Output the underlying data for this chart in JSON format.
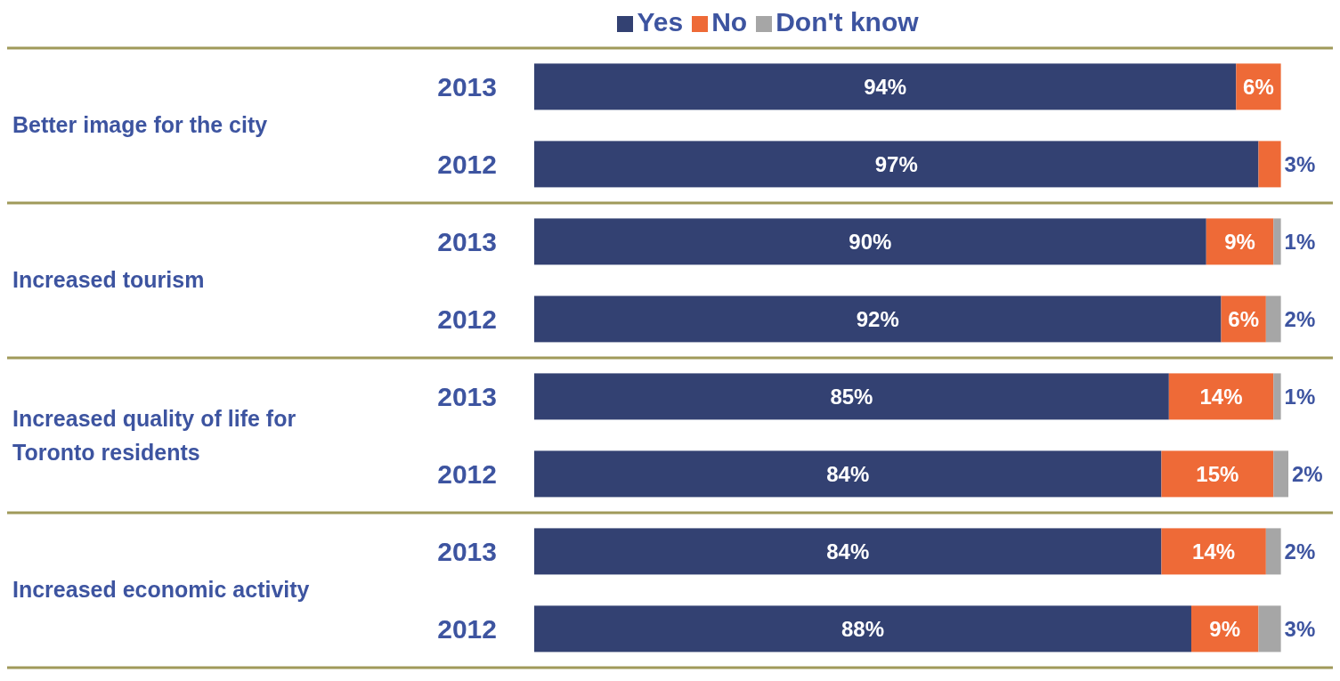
{
  "chart_data": {
    "type": "bar",
    "orientation": "horizontal",
    "stacked": true,
    "categories": [
      "2013",
      "2012",
      "2013",
      "2012",
      "2013",
      "2012",
      "2013",
      "2012"
    ],
    "annotations": [
      "Better image for the city",
      "Increased tourism",
      "Increased quality of life for Toronto residents",
      "Increased economic activity"
    ],
    "series": [
      {
        "name": "Yes",
        "color": "#334172",
        "values": [
          94,
          97,
          90,
          92,
          85,
          84,
          84,
          88
        ],
        "value_labels": [
          "94%",
          "97%",
          "90%",
          "92%",
          "85%",
          "84%",
          "84%",
          "88%"
        ]
      },
      {
        "name": "No",
        "color": "#ee6a37",
        "values": [
          6,
          3,
          9,
          6,
          14,
          15,
          14,
          9
        ],
        "value_labels": [
          "6%",
          "3%",
          "9%",
          "6%",
          "14%",
          "15%",
          "14%",
          "9%"
        ]
      },
      {
        "name": "Don't know",
        "color": "#a6a6a6",
        "values": [
          null,
          null,
          1,
          2,
          1,
          2,
          2,
          3
        ],
        "value_labels": [
          null,
          null,
          "1%",
          "2%",
          "1%",
          "2%",
          "2%",
          "3%"
        ]
      }
    ],
    "xlim": [
      0,
      101
    ],
    "tick_labels": "y",
    "legend": "top",
    "grid": false
  }
}
